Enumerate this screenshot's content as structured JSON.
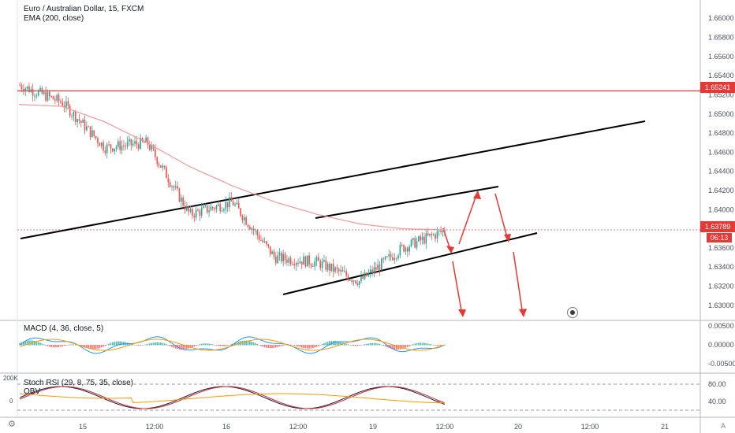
{
  "header": {
    "symbol_title": "Euro / Australian Dollar, 15, FXCM",
    "indicator_ema": "EMA (200, close)"
  },
  "panes": {
    "macd_title": "MACD (4, 36, close, 5)",
    "stoch_title": "Stoch RSI (29, 8, 75, 35, close)",
    "obv_title": "OBV",
    "obv_scale_top": "200K",
    "obv_scale_zero": "0"
  },
  "price_axis": {
    "ticks": [
      "1.66000",
      "1.65800",
      "1.65600",
      "1.65400",
      "1.65200",
      "1.65000",
      "1.64800",
      "1.64600",
      "1.64400",
      "1.64200",
      "1.64000",
      "1.63800",
      "1.63600",
      "1.63400",
      "1.63200",
      "1.63000"
    ],
    "macd_ticks": [
      "0.00500",
      "0.00000",
      "-0.00500"
    ],
    "stoch_ticks": [
      "80.00",
      "40.00"
    ]
  },
  "time_axis": {
    "labels": [
      "15",
      "12:00",
      "16",
      "12:00",
      "19",
      "12:00",
      "20",
      "12:00",
      "21"
    ]
  },
  "markers": {
    "horizontal_level": "1.65241",
    "current_price": "1.63789",
    "countdown": "06:13",
    "level_color": "#e53935",
    "up_color": "#26a69a",
    "down_color": "#ef5350"
  },
  "chart_data": {
    "type": "line",
    "title": "Euro / Australian Dollar, 15, FXCM",
    "xlabel": "",
    "ylabel": "",
    "ylim": [
      1.629,
      1.6615
    ],
    "grid": false,
    "x": [
      "15 00:00",
      "15 06:00",
      "15 12:00",
      "15 18:00",
      "16 00:00",
      "16 06:00",
      "16 12:00",
      "16 18:00",
      "19 00:00",
      "19 06:00",
      "19 12:00"
    ],
    "series": [
      {
        "name": "",
        "values": [
          1.653,
          1.6512,
          1.6465,
          1.647,
          1.6395,
          1.6408,
          1.635,
          1.6345,
          1.6325,
          1.636,
          1.6378
        ]
      },
      {
        "name": "EMA (200, close)",
        "values": [
          1.651,
          1.6508,
          1.6492,
          1.647,
          1.6445,
          1.6425,
          1.6408,
          1.6395,
          1.6385,
          1.638,
          1.6379
        ]
      }
    ],
    "levels": [
      1.65241,
      1.63789
    ]
  }
}
